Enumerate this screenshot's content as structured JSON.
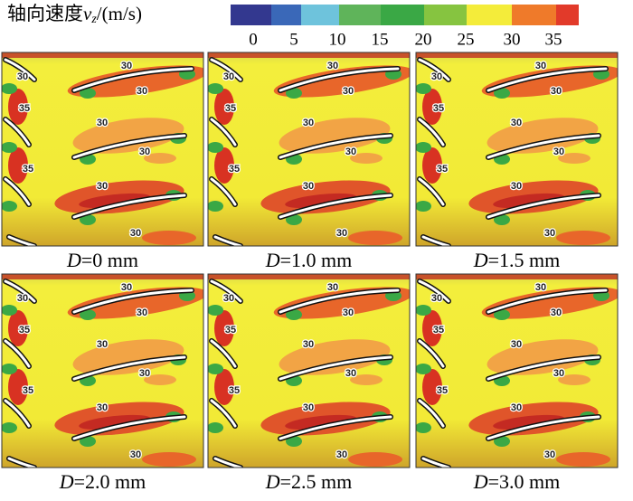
{
  "colorbar": {
    "title": {
      "name": "轴向速度",
      "symbol": "v",
      "subscript": "z",
      "unit": "/(m/s)"
    },
    "ticks": [
      0,
      5,
      10,
      15,
      20,
      25,
      30,
      35
    ]
  },
  "panels": [
    {
      "caption": {
        "variable": "D",
        "text": "=0 mm"
      },
      "contour_labels": [
        30,
        30,
        30,
        35,
        30,
        30,
        35,
        30,
        30
      ]
    },
    {
      "caption": {
        "variable": "D",
        "text": "=1.0 mm"
      },
      "contour_labels": [
        30,
        30,
        30,
        35,
        30,
        30,
        35,
        30,
        30
      ]
    },
    {
      "caption": {
        "variable": "D",
        "text": "=1.5 mm"
      },
      "contour_labels": [
        30,
        30,
        30,
        35,
        30,
        30,
        35,
        30,
        30
      ]
    },
    {
      "caption": {
        "variable": "D",
        "text": "=2.0 mm"
      },
      "contour_labels": [
        30,
        30,
        30,
        35,
        30,
        30,
        35,
        30,
        30
      ]
    },
    {
      "caption": {
        "variable": "D",
        "text": "=2.5 mm"
      },
      "contour_labels": [
        30,
        30,
        30,
        35,
        30,
        30,
        35,
        30,
        30
      ]
    },
    {
      "caption": {
        "variable": "D",
        "text": "=3.0 mm"
      },
      "contour_labels": [
        30,
        30,
        30,
        35,
        30,
        30,
        35,
        30,
        30
      ]
    }
  ]
}
